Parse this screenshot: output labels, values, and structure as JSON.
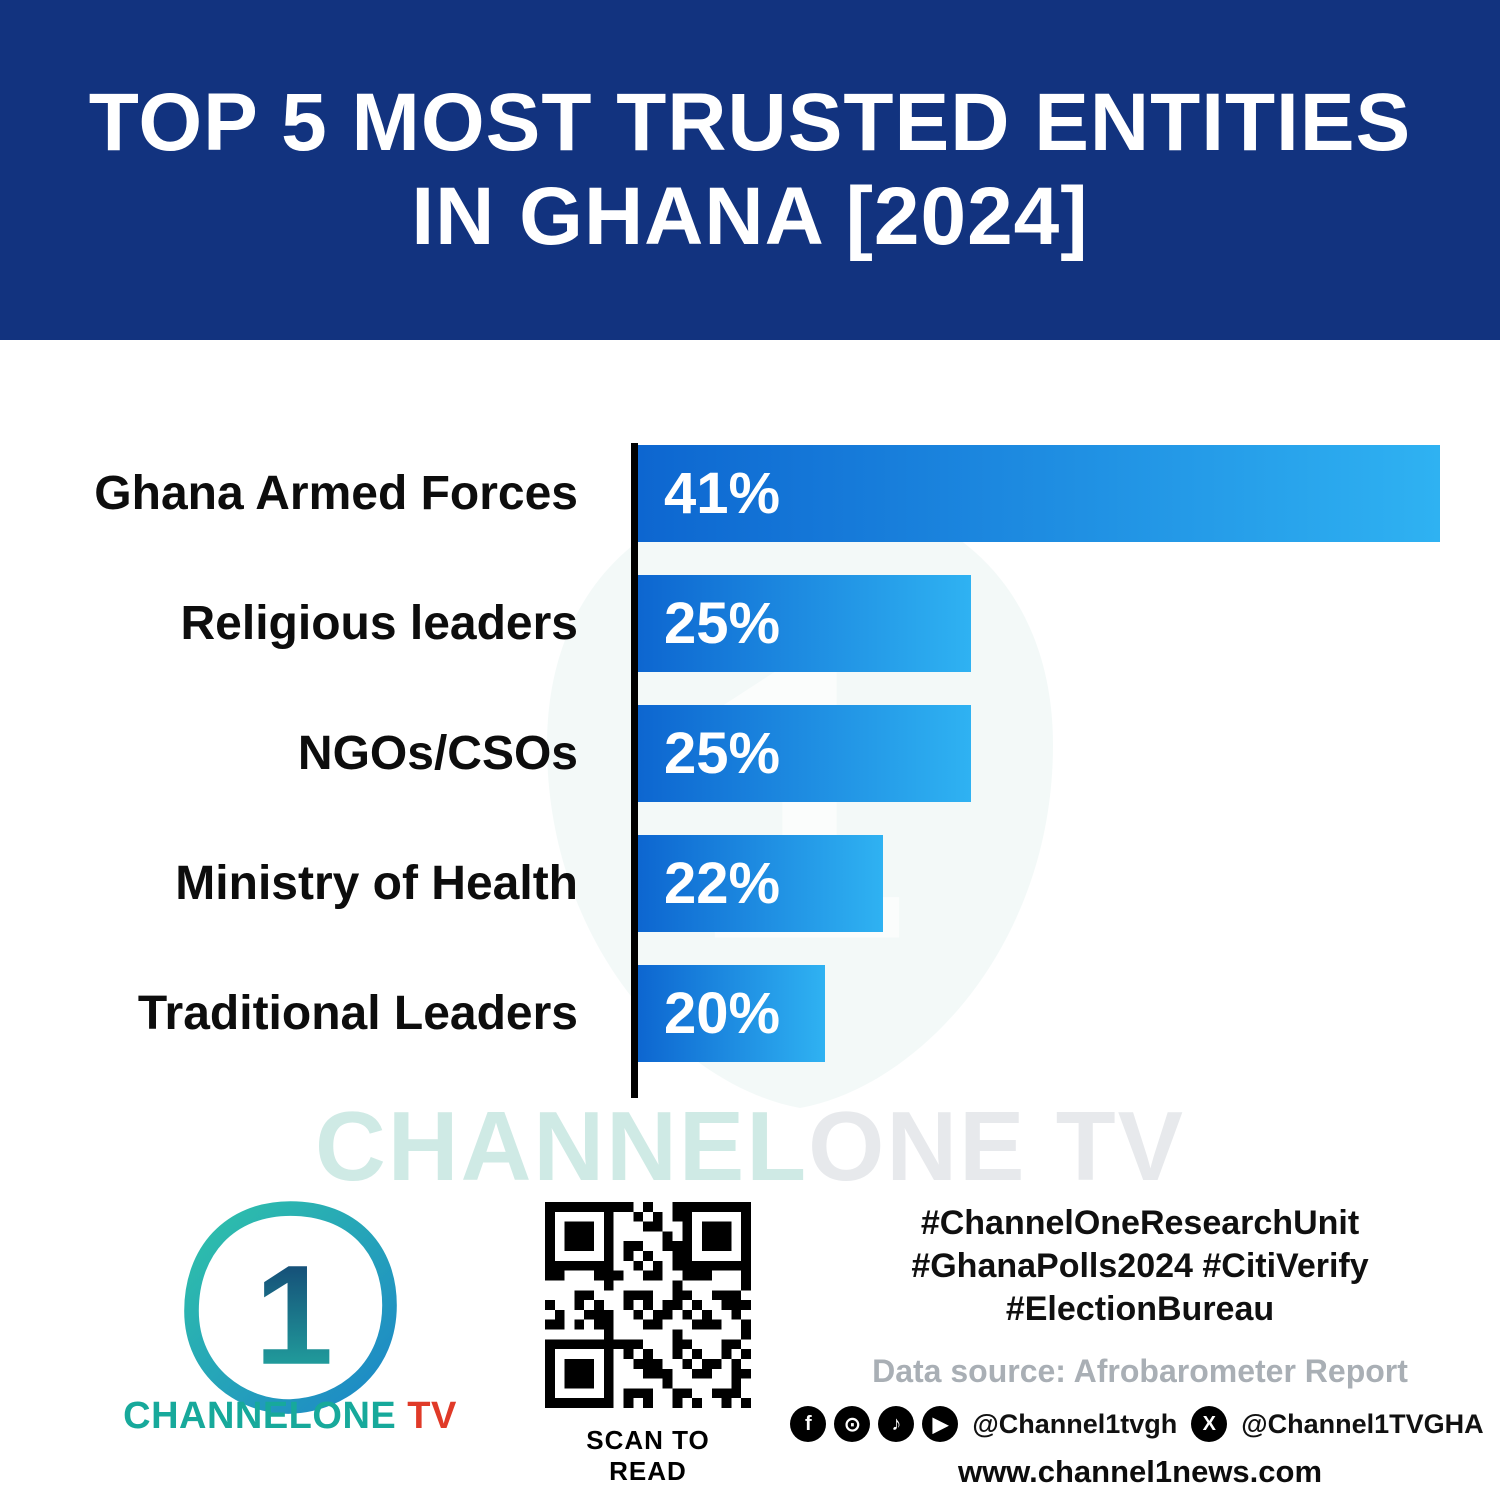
{
  "header": {
    "title_line1": "TOP 5 MOST TRUSTED ENTITIES",
    "title_line2": "IN GHANA [2024]",
    "bg_color": "#12337f"
  },
  "chart_data": {
    "type": "bar",
    "orientation": "horizontal",
    "title": "Top 5 Most Trusted Entities in Ghana [2024]",
    "categories": [
      "Ghana Armed Forces",
      "Religious leaders",
      "NGOs/CSOs",
      "Ministry of Health",
      "Traditional Leaders"
    ],
    "values": [
      41,
      25,
      25,
      22,
      20
    ],
    "value_labels": [
      "41%",
      "25%",
      "25%",
      "22%",
      "20%"
    ],
    "xlim": [
      0,
      44
    ],
    "grid": false,
    "legend": "none",
    "bar_color_start": "#0d66d0",
    "bar_color_end": "#2fb2f2",
    "display_widths_pct": [
      93,
      38.6,
      38.6,
      28.4,
      21.7
    ]
  },
  "watermark": {
    "part1": "CHANNEL",
    "part2": "ONE TV"
  },
  "footer": {
    "logo": {
      "logo_digit": "1",
      "brand_main": "CHANNELONE",
      "brand_tv": " TV"
    },
    "qr": {
      "caption": "SCAN TO READ"
    },
    "hashtags_line1": "#ChannelOneResearchUnit",
    "hashtags_line2": "#GhanaPolls2024 #CitiVerify",
    "hashtags_line3": "#ElectionBureau",
    "source": "Data source: Afrobarometer Report",
    "social": {
      "icons": {
        "facebook": "f",
        "instagram": "⊙",
        "tiktok": "♪",
        "youtube": "▶",
        "x": "X"
      },
      "handle1": "@Channel1tvgh",
      "handle2": "@Channel1TVGHA"
    },
    "website": "www.channel1news.com"
  }
}
